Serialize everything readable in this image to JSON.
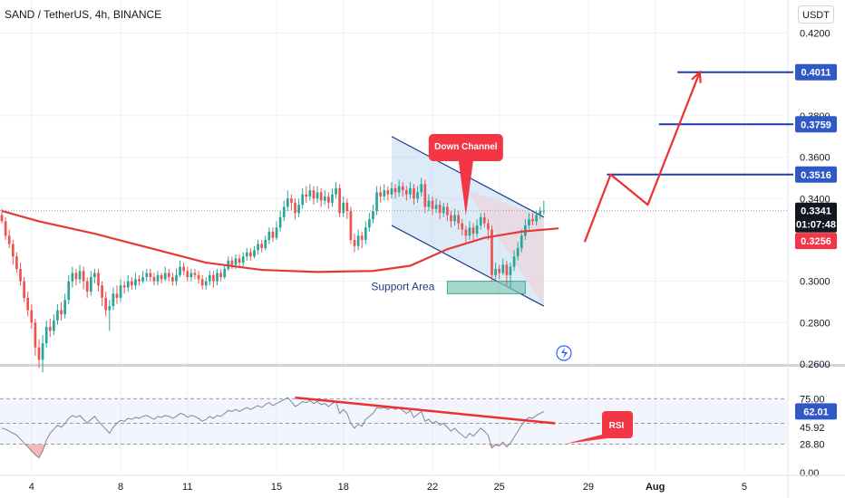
{
  "header": {
    "symbol_title": "SAND / TetherUS, 4h, BINANCE",
    "currency": "USDT"
  },
  "colors": {
    "up": "#26a69a",
    "down": "#ef5350",
    "ma": "#e53935",
    "channel": "#1e3a8a",
    "target_line": "#1f3fa6",
    "badge_blue": "#3159c6",
    "badge_red": "#f23645",
    "badge_dark": "#131722",
    "rsi_line": "#7e8899",
    "annotation_red": "#ef2f2f",
    "support": "#7ec8b8",
    "grid": "#eef1f5"
  },
  "chart_data": {
    "type": "candlestick",
    "price_axis": {
      "ticks": [
        "0.4200",
        "0.3800",
        "0.3600",
        "0.3400",
        "0.3000",
        "0.2800",
        "0.2600"
      ],
      "tick_values": [
        0.42,
        0.38,
        0.36,
        0.34,
        0.3,
        0.28,
        0.26
      ],
      "range": [
        0.26,
        0.436
      ]
    },
    "time_axis": {
      "ticks": [
        {
          "label": "4",
          "bar": 8
        },
        {
          "label": "8",
          "bar": 32
        },
        {
          "label": "11",
          "bar": 50
        },
        {
          "label": "15",
          "bar": 74
        },
        {
          "label": "18",
          "bar": 92
        },
        {
          "label": "22",
          "bar": 116
        },
        {
          "label": "25",
          "bar": 134
        },
        {
          "label": "29",
          "bar": 158
        },
        {
          "label": "Aug",
          "bar": 176
        },
        {
          "label": "5",
          "bar": 200
        }
      ]
    },
    "candles_total_bars": 212,
    "candles": [
      [
        0.332,
        0.329,
        0.335,
        0.328
      ],
      [
        0.329,
        0.322,
        0.331,
        0.32
      ],
      [
        0.322,
        0.318,
        0.325,
        0.316
      ],
      [
        0.318,
        0.312,
        0.32,
        0.308
      ],
      [
        0.312,
        0.306,
        0.314,
        0.304
      ],
      [
        0.306,
        0.3,
        0.309,
        0.298
      ],
      [
        0.3,
        0.292,
        0.302,
        0.29
      ],
      [
        0.292,
        0.286,
        0.295,
        0.283
      ],
      [
        0.286,
        0.28,
        0.289,
        0.277
      ],
      [
        0.28,
        0.268,
        0.282,
        0.264
      ],
      [
        0.268,
        0.262,
        0.272,
        0.258
      ],
      [
        0.262,
        0.27,
        0.274,
        0.256
      ],
      [
        0.27,
        0.278,
        0.281,
        0.268
      ],
      [
        0.278,
        0.276,
        0.282,
        0.273
      ],
      [
        0.276,
        0.281,
        0.284,
        0.274
      ],
      [
        0.281,
        0.286,
        0.289,
        0.279
      ],
      [
        0.286,
        0.284,
        0.29,
        0.281
      ],
      [
        0.284,
        0.291,
        0.294,
        0.282
      ],
      [
        0.291,
        0.3,
        0.303,
        0.289
      ],
      [
        0.3,
        0.304,
        0.307,
        0.297
      ],
      [
        0.304,
        0.301,
        0.306,
        0.298
      ],
      [
        0.301,
        0.305,
        0.308,
        0.299
      ],
      [
        0.305,
        0.3,
        0.307,
        0.296
      ],
      [
        0.3,
        0.295,
        0.302,
        0.292
      ],
      [
        0.295,
        0.302,
        0.305,
        0.293
      ],
      [
        0.302,
        0.304,
        0.306,
        0.299
      ],
      [
        0.304,
        0.298,
        0.306,
        0.295
      ],
      [
        0.298,
        0.292,
        0.3,
        0.288
      ],
      [
        0.292,
        0.286,
        0.295,
        0.283
      ],
      [
        0.286,
        0.288,
        0.291,
        0.276
      ],
      [
        0.288,
        0.294,
        0.297,
        0.286
      ],
      [
        0.294,
        0.292,
        0.298,
        0.289
      ],
      [
        0.292,
        0.298,
        0.301,
        0.29
      ],
      [
        0.298,
        0.297,
        0.3,
        0.294
      ],
      [
        0.297,
        0.3,
        0.303,
        0.295
      ],
      [
        0.3,
        0.298,
        0.302,
        0.296
      ],
      [
        0.298,
        0.301,
        0.304,
        0.296
      ],
      [
        0.301,
        0.3,
        0.303,
        0.298
      ],
      [
        0.3,
        0.302,
        0.305,
        0.299
      ],
      [
        0.302,
        0.304,
        0.306,
        0.3
      ],
      [
        0.304,
        0.302,
        0.306,
        0.3
      ],
      [
        0.302,
        0.3,
        0.304,
        0.298
      ],
      [
        0.3,
        0.303,
        0.305,
        0.298
      ],
      [
        0.303,
        0.301,
        0.304,
        0.299
      ],
      [
        0.301,
        0.304,
        0.307,
        0.3
      ],
      [
        0.304,
        0.302,
        0.306,
        0.3
      ],
      [
        0.302,
        0.3,
        0.304,
        0.298
      ],
      [
        0.3,
        0.303,
        0.306,
        0.298
      ],
      [
        0.303,
        0.307,
        0.31,
        0.302
      ],
      [
        0.307,
        0.305,
        0.309,
        0.303
      ],
      [
        0.305,
        0.302,
        0.307,
        0.3
      ],
      [
        0.302,
        0.304,
        0.306,
        0.3
      ],
      [
        0.304,
        0.303,
        0.306,
        0.301
      ],
      [
        0.303,
        0.301,
        0.305,
        0.299
      ],
      [
        0.301,
        0.298,
        0.303,
        0.296
      ],
      [
        0.298,
        0.3,
        0.302,
        0.296
      ],
      [
        0.3,
        0.303,
        0.305,
        0.298
      ],
      [
        0.303,
        0.3,
        0.305,
        0.297
      ],
      [
        0.3,
        0.304,
        0.306,
        0.298
      ],
      [
        0.304,
        0.302,
        0.306,
        0.3
      ],
      [
        0.302,
        0.306,
        0.308,
        0.301
      ],
      [
        0.306,
        0.31,
        0.312,
        0.305
      ],
      [
        0.31,
        0.308,
        0.312,
        0.306
      ],
      [
        0.308,
        0.311,
        0.313,
        0.306
      ],
      [
        0.311,
        0.309,
        0.313,
        0.307
      ],
      [
        0.309,
        0.312,
        0.314,
        0.307
      ],
      [
        0.312,
        0.314,
        0.316,
        0.31
      ],
      [
        0.314,
        0.312,
        0.316,
        0.31
      ],
      [
        0.312,
        0.315,
        0.317,
        0.311
      ],
      [
        0.315,
        0.318,
        0.32,
        0.313
      ],
      [
        0.318,
        0.316,
        0.32,
        0.314
      ],
      [
        0.316,
        0.32,
        0.322,
        0.315
      ],
      [
        0.32,
        0.324,
        0.326,
        0.318
      ],
      [
        0.324,
        0.321,
        0.326,
        0.319
      ],
      [
        0.321,
        0.326,
        0.329,
        0.32
      ],
      [
        0.326,
        0.331,
        0.334,
        0.324
      ],
      [
        0.331,
        0.336,
        0.339,
        0.329
      ],
      [
        0.336,
        0.34,
        0.344,
        0.334
      ],
      [
        0.34,
        0.338,
        0.342,
        0.334
      ],
      [
        0.338,
        0.333,
        0.34,
        0.33
      ],
      [
        0.333,
        0.337,
        0.34,
        0.331
      ],
      [
        0.337,
        0.342,
        0.345,
        0.335
      ],
      [
        0.342,
        0.341,
        0.346,
        0.338
      ],
      [
        0.341,
        0.344,
        0.347,
        0.339
      ],
      [
        0.344,
        0.34,
        0.346,
        0.337
      ],
      [
        0.34,
        0.343,
        0.346,
        0.338
      ],
      [
        0.343,
        0.339,
        0.345,
        0.336
      ],
      [
        0.339,
        0.341,
        0.344,
        0.337
      ],
      [
        0.341,
        0.338,
        0.343,
        0.335
      ],
      [
        0.338,
        0.342,
        0.345,
        0.336
      ],
      [
        0.342,
        0.345,
        0.348,
        0.34
      ],
      [
        0.345,
        0.333,
        0.347,
        0.331
      ],
      [
        0.333,
        0.338,
        0.341,
        0.331
      ],
      [
        0.338,
        0.334,
        0.34,
        0.33
      ],
      [
        0.334,
        0.32,
        0.336,
        0.318
      ],
      [
        0.32,
        0.317,
        0.323,
        0.314
      ],
      [
        0.317,
        0.322,
        0.325,
        0.315
      ],
      [
        0.322,
        0.32,
        0.324,
        0.316
      ],
      [
        0.32,
        0.326,
        0.329,
        0.318
      ],
      [
        0.326,
        0.33,
        0.333,
        0.324
      ],
      [
        0.33,
        0.334,
        0.337,
        0.328
      ],
      [
        0.334,
        0.343,
        0.346,
        0.332
      ],
      [
        0.343,
        0.341,
        0.346,
        0.338
      ],
      [
        0.341,
        0.344,
        0.347,
        0.339
      ],
      [
        0.344,
        0.342,
        0.346,
        0.339
      ],
      [
        0.342,
        0.345,
        0.348,
        0.34
      ],
      [
        0.345,
        0.343,
        0.347,
        0.34
      ],
      [
        0.343,
        0.346,
        0.349,
        0.341
      ],
      [
        0.346,
        0.344,
        0.348,
        0.341
      ],
      [
        0.344,
        0.342,
        0.346,
        0.339
      ],
      [
        0.342,
        0.345,
        0.348,
        0.34
      ],
      [
        0.345,
        0.34,
        0.347,
        0.337
      ],
      [
        0.34,
        0.343,
        0.346,
        0.338
      ],
      [
        0.343,
        0.347,
        0.35,
        0.341
      ],
      [
        0.347,
        0.336,
        0.349,
        0.333
      ],
      [
        0.336,
        0.339,
        0.342,
        0.334
      ],
      [
        0.339,
        0.335,
        0.341,
        0.332
      ],
      [
        0.335,
        0.337,
        0.34,
        0.333
      ],
      [
        0.337,
        0.333,
        0.339,
        0.33
      ],
      [
        0.333,
        0.336,
        0.338,
        0.331
      ],
      [
        0.336,
        0.332,
        0.338,
        0.329
      ],
      [
        0.332,
        0.329,
        0.334,
        0.326
      ],
      [
        0.329,
        0.332,
        0.335,
        0.327
      ],
      [
        0.332,
        0.328,
        0.334,
        0.325
      ],
      [
        0.328,
        0.325,
        0.33,
        0.322
      ],
      [
        0.325,
        0.322,
        0.327,
        0.319
      ],
      [
        0.322,
        0.326,
        0.329,
        0.32
      ],
      [
        0.326,
        0.323,
        0.328,
        0.32
      ],
      [
        0.323,
        0.327,
        0.33,
        0.321
      ],
      [
        0.327,
        0.331,
        0.333,
        0.325
      ],
      [
        0.331,
        0.328,
        0.333,
        0.326
      ],
      [
        0.328,
        0.325,
        0.33,
        0.32
      ],
      [
        0.325,
        0.303,
        0.327,
        0.3
      ],
      [
        0.303,
        0.306,
        0.309,
        0.301
      ],
      [
        0.306,
        0.304,
        0.308,
        0.301
      ],
      [
        0.304,
        0.308,
        0.311,
        0.303
      ],
      [
        0.308,
        0.303,
        0.31,
        0.298
      ],
      [
        0.303,
        0.307,
        0.309,
        0.297
      ],
      [
        0.307,
        0.312,
        0.315,
        0.305
      ],
      [
        0.312,
        0.316,
        0.319,
        0.31
      ],
      [
        0.316,
        0.322,
        0.325,
        0.314
      ],
      [
        0.322,
        0.327,
        0.33,
        0.32
      ],
      [
        0.327,
        0.33,
        0.333,
        0.325
      ],
      [
        0.33,
        0.329,
        0.333,
        0.327
      ],
      [
        0.329,
        0.332,
        0.334,
        0.327
      ],
      [
        0.332,
        0.334,
        0.336,
        0.33
      ],
      [
        0.334,
        0.3341,
        0.339,
        0.332
      ]
    ],
    "ma": {
      "name": "",
      "points": [
        [
          0,
          0.334
        ],
        [
          10,
          0.329
        ],
        [
          25,
          0.323
        ],
        [
          40,
          0.316
        ],
        [
          55,
          0.309
        ],
        [
          70,
          0.3055
        ],
        [
          85,
          0.3045
        ],
        [
          100,
          0.305
        ],
        [
          110,
          0.3075
        ],
        [
          120,
          0.3155
        ],
        [
          130,
          0.321
        ],
        [
          140,
          0.324
        ],
        [
          150,
          0.3256
        ]
      ]
    },
    "down_channel": {
      "upper": [
        [
          105,
          0.37
        ],
        [
          146,
          0.331
        ]
      ],
      "lower": [
        [
          105,
          0.327
        ],
        [
          146,
          0.288
        ]
      ],
      "label": "Down Channel"
    },
    "support_area": {
      "label": "Support Area",
      "from_bar": 120,
      "to_bar": 141,
      "top": 0.3,
      "bottom": 0.294
    },
    "projection": [
      [
        157,
        0.319
      ],
      [
        164,
        0.3516
      ],
      [
        174,
        0.337
      ],
      [
        188,
        0.4011
      ]
    ],
    "levels": [
      {
        "price": 0.4011,
        "label": "0.4011",
        "from_bar": 182
      },
      {
        "price": 0.3759,
        "label": "0.3759",
        "from_bar": 177
      },
      {
        "price": 0.3516,
        "label": "0.3516",
        "from_bar": 163
      }
    ],
    "current_price": {
      "label": "0.3341",
      "countdown": "01:07:48",
      "price": 0.3341
    },
    "ma_value": {
      "label": "0.3256",
      "price": 0.3256
    },
    "rsi": {
      "label": "RSI",
      "ticks": [
        "75.00",
        "45.92",
        "28.80",
        "0.00"
      ],
      "tick_values": [
        75,
        45.92,
        28.8,
        0
      ],
      "current": {
        "label": "62.01",
        "value": 62.01
      },
      "bands": [
        75,
        50,
        28.8
      ],
      "range": [
        0,
        100
      ],
      "values": [
        45,
        44,
        42,
        40,
        38,
        34,
        30,
        26,
        22,
        18,
        15,
        22,
        33,
        40,
        44,
        48,
        46,
        50,
        55,
        58,
        56,
        58,
        54,
        50,
        54,
        57,
        52,
        48,
        44,
        40,
        46,
        50,
        53,
        52,
        55,
        54,
        56,
        55,
        57,
        58,
        56,
        54,
        57,
        56,
        58,
        57,
        55,
        57,
        60,
        59,
        56,
        58,
        57,
        55,
        52,
        54,
        57,
        55,
        58,
        57,
        60,
        63,
        62,
        64,
        62,
        64,
        66,
        64,
        66,
        68,
        66,
        69,
        71,
        68,
        70,
        72,
        74,
        76,
        72,
        67,
        69,
        72,
        71,
        73,
        70,
        72,
        69,
        70,
        67,
        70,
        72,
        60,
        64,
        60,
        50,
        45,
        49,
        47,
        54,
        57,
        60,
        66,
        65,
        66,
        64,
        66,
        64,
        66,
        63,
        60,
        63,
        56,
        59,
        62,
        52,
        54,
        50,
        52,
        48,
        50,
        46,
        42,
        45,
        41,
        38,
        35,
        40,
        37,
        41,
        45,
        42,
        38,
        25,
        28,
        27,
        31,
        26,
        30,
        36,
        42,
        48,
        53,
        56,
        55,
        58,
        60,
        62.01
      ],
      "trendline": [
        [
          79,
          76
        ],
        [
          149,
          50
        ]
      ]
    }
  }
}
